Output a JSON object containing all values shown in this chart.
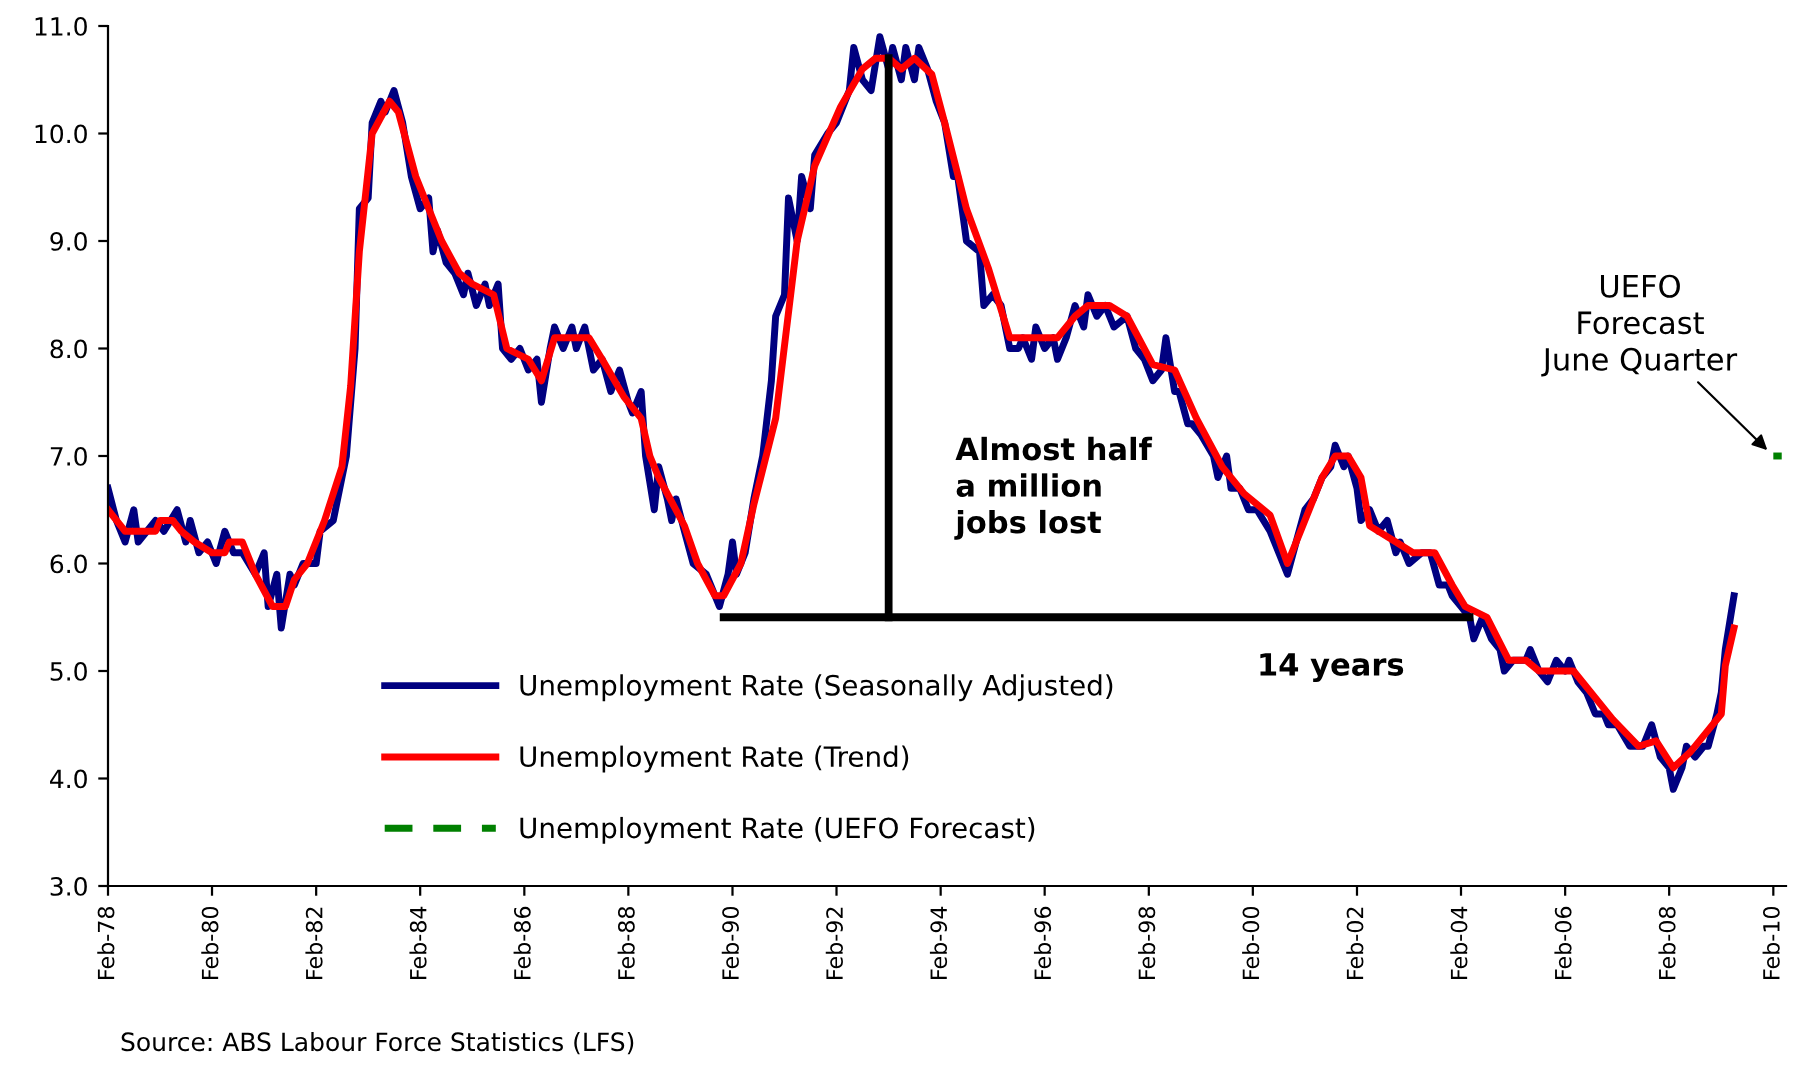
{
  "chart_data": {
    "type": "line",
    "xlim": [
      "1978-02",
      "2010-05"
    ],
    "xticks": [
      {
        "value": "1978-02",
        "label": "Feb-78"
      },
      {
        "value": "1980-02",
        "label": "Feb-80"
      },
      {
        "value": "1982-02",
        "label": "Feb-82"
      },
      {
        "value": "1984-02",
        "label": "Feb-84"
      },
      {
        "value": "1986-02",
        "label": "Feb-86"
      },
      {
        "value": "1988-02",
        "label": "Feb-88"
      },
      {
        "value": "1990-02",
        "label": "Feb-90"
      },
      {
        "value": "1992-02",
        "label": "Feb-92"
      },
      {
        "value": "1994-02",
        "label": "Feb-94"
      },
      {
        "value": "1996-02",
        "label": "Feb-96"
      },
      {
        "value": "1998-02",
        "label": "Feb-98"
      },
      {
        "value": "2000-02",
        "label": "Feb-00"
      },
      {
        "value": "2002-02",
        "label": "Feb-02"
      },
      {
        "value": "2004-02",
        "label": "Feb-04"
      },
      {
        "value": "2006-02",
        "label": "Feb-06"
      },
      {
        "value": "2008-02",
        "label": "Feb-08"
      },
      {
        "value": "2010-02",
        "label": "Feb-10"
      }
    ],
    "ylim": [
      3.0,
      11.0
    ],
    "yticks": [
      {
        "value": 3,
        "label": "3.0"
      },
      {
        "value": 4,
        "label": "4.0"
      },
      {
        "value": 5,
        "label": "5.0"
      },
      {
        "value": 6,
        "label": "6.0"
      },
      {
        "value": 7,
        "label": "7.0"
      },
      {
        "value": 8,
        "label": "8.0"
      },
      {
        "value": 9,
        "label": "9.0"
      },
      {
        "value": 10,
        "label": "10.0"
      },
      {
        "value": 11,
        "label": "11.0"
      }
    ],
    "grid": false,
    "legend": "bottom",
    "marker": "none",
    "series": [
      {
        "name": "Unemployment Rate (Seasonally Adjusted)",
        "color": "#000080",
        "line_style": "solid",
        "x": [
          "1978-02",
          "1978-04",
          "1978-06",
          "1978-08",
          "1978-09",
          "1978-11",
          "1979-01",
          "1979-03",
          "1979-06",
          "1979-08",
          "1979-09",
          "1979-11",
          "1980-01",
          "1980-03",
          "1980-05",
          "1980-07",
          "1980-09",
          "1980-12",
          "1981-02",
          "1981-03",
          "1981-05",
          "1981-06",
          "1981-08",
          "1981-09",
          "1981-11",
          "1982-02",
          "1982-03",
          "1982-06",
          "1982-08",
          "1982-09",
          "1982-11",
          "1982-12",
          "1983-02",
          "1983-03",
          "1983-05",
          "1983-06",
          "1983-08",
          "1983-10",
          "1983-12",
          "1984-02",
          "1984-04",
          "1984-05",
          "1984-06",
          "1984-08",
          "1984-10",
          "1984-12",
          "1985-01",
          "1985-03",
          "1985-05",
          "1985-06",
          "1985-08",
          "1985-09",
          "1985-11",
          "1986-01",
          "1986-03",
          "1986-05",
          "1986-06",
          "1986-08",
          "1986-09",
          "1986-11",
          "1987-01",
          "1987-02",
          "1987-04",
          "1987-06",
          "1987-08",
          "1987-10",
          "1987-12",
          "1988-02",
          "1988-03",
          "1988-05",
          "1988-06",
          "1988-08",
          "1988-09",
          "1988-11",
          "1988-12",
          "1989-01",
          "1989-03",
          "1989-05",
          "1989-08",
          "1989-09",
          "1989-11",
          "1990-01",
          "1990-02",
          "1990-03",
          "1990-05",
          "1990-07",
          "1990-09",
          "1990-11",
          "1990-12",
          "1991-02",
          "1991-03",
          "1991-05",
          "1991-06",
          "1991-08",
          "1991-09",
          "1991-12",
          "1992-02",
          "1992-05",
          "1992-06",
          "1992-08",
          "1992-10",
          "1992-12",
          "1993-02",
          "1993-03",
          "1993-05",
          "1993-06",
          "1993-08",
          "1993-09",
          "1993-11",
          "1994-01",
          "1994-03",
          "1994-05",
          "1994-06",
          "1994-08",
          "1994-11",
          "1994-12",
          "1995-02",
          "1995-04",
          "1995-06",
          "1995-08",
          "1995-09",
          "1995-11",
          "1995-12",
          "1996-02",
          "1996-04",
          "1996-05",
          "1996-07",
          "1996-09",
          "1996-11",
          "1996-12",
          "1997-02",
          "1997-04",
          "1997-06",
          "1997-09",
          "1997-11",
          "1998-01",
          "1998-03",
          "1998-05",
          "1998-06",
          "1998-08",
          "1998-09",
          "1998-11",
          "1998-12",
          "1999-02",
          "1999-05",
          "1999-06",
          "1999-08",
          "1999-09",
          "1999-11",
          "2000-01",
          "2000-03",
          "2000-06",
          "2000-08",
          "2000-10",
          "2000-12",
          "2001-02",
          "2001-04",
          "2001-06",
          "2001-08",
          "2001-09",
          "2001-11",
          "2001-12",
          "2002-02",
          "2002-03",
          "2002-05",
          "2002-07",
          "2002-09",
          "2002-11",
          "2002-12",
          "2003-02",
          "2003-05",
          "2003-07",
          "2003-09",
          "2003-11",
          "2003-12",
          "2004-02",
          "2004-04",
          "2004-05",
          "2004-07",
          "2004-09",
          "2004-11",
          "2004-12",
          "2005-02",
          "2005-05",
          "2005-06",
          "2005-08",
          "2005-10",
          "2005-12",
          "2006-02",
          "2006-03",
          "2006-05",
          "2006-07",
          "2006-09",
          "2006-11",
          "2006-12",
          "2007-02",
          "2007-05",
          "2007-06",
          "2007-08",
          "2007-10",
          "2007-12",
          "2008-02",
          "2008-03",
          "2008-05",
          "2008-06",
          "2008-08",
          "2008-10",
          "2008-11",
          "2009-01",
          "2009-02",
          "2009-03",
          "2009-05"
        ],
        "values": [
          6.7,
          6.4,
          6.2,
          6.5,
          6.2,
          6.3,
          6.4,
          6.3,
          6.5,
          6.2,
          6.4,
          6.1,
          6.2,
          6.0,
          6.3,
          6.1,
          6.1,
          5.9,
          6.1,
          5.6,
          5.9,
          5.4,
          5.9,
          5.8,
          6.0,
          6.0,
          6.3,
          6.4,
          6.8,
          7.0,
          8.0,
          9.3,
          9.4,
          10.1,
          10.3,
          10.2,
          10.4,
          10.1,
          9.6,
          9.3,
          9.4,
          8.9,
          9.1,
          8.8,
          8.7,
          8.5,
          8.7,
          8.4,
          8.6,
          8.4,
          8.6,
          8.0,
          7.9,
          8.0,
          7.8,
          7.9,
          7.5,
          8.0,
          8.2,
          8.0,
          8.2,
          8.0,
          8.2,
          7.8,
          7.9,
          7.6,
          7.8,
          7.5,
          7.4,
          7.6,
          7.0,
          6.5,
          6.9,
          6.6,
          6.4,
          6.6,
          6.3,
          6.0,
          5.9,
          5.8,
          5.6,
          5.9,
          6.2,
          5.9,
          6.1,
          6.6,
          7.0,
          7.7,
          8.3,
          8.5,
          9.4,
          9.0,
          9.6,
          9.3,
          9.8,
          10.0,
          10.1,
          10.4,
          10.8,
          10.5,
          10.4,
          10.9,
          10.6,
          10.8,
          10.5,
          10.8,
          10.5,
          10.8,
          10.6,
          10.3,
          10.1,
          9.6,
          9.6,
          9.0,
          8.9,
          8.4,
          8.5,
          8.4,
          8.0,
          8.0,
          8.1,
          7.9,
          8.2,
          8.0,
          8.1,
          7.9,
          8.1,
          8.4,
          8.2,
          8.5,
          8.3,
          8.4,
          8.2,
          8.3,
          8.0,
          7.9,
          7.7,
          7.8,
          8.1,
          7.6,
          7.6,
          7.3,
          7.3,
          7.2,
          7.0,
          6.8,
          7.0,
          6.7,
          6.7,
          6.5,
          6.5,
          6.3,
          6.1,
          5.9,
          6.2,
          6.5,
          6.6,
          6.8,
          6.9,
          7.1,
          6.9,
          7.0,
          6.7,
          6.4,
          6.5,
          6.3,
          6.4,
          6.1,
          6.2,
          6.0,
          6.1,
          6.1,
          5.8,
          5.8,
          5.7,
          5.6,
          5.5,
          5.3,
          5.5,
          5.3,
          5.2,
          5.0,
          5.1,
          5.1,
          5.2,
          5.0,
          4.9,
          5.1,
          5.0,
          5.1,
          4.9,
          4.8,
          4.6,
          4.6,
          4.5,
          4.5,
          4.3,
          4.3,
          4.3,
          4.5,
          4.2,
          4.1,
          3.9,
          4.1,
          4.3,
          4.2,
          4.3,
          4.3,
          4.6,
          4.8,
          5.2,
          5.7
        ]
      },
      {
        "name": "Unemployment Rate (Trend)",
        "color": "#ff0000",
        "line_style": "solid",
        "x": [
          "1978-02",
          "1978-06",
          "1979-01",
          "1979-02",
          "1979-05",
          "1979-07",
          "1979-10",
          "1980-02",
          "1980-05",
          "1980-06",
          "1980-09",
          "1980-12",
          "1981-04",
          "1981-07",
          "1981-09",
          "1981-12",
          "1982-04",
          "1982-08",
          "1982-10",
          "1982-12",
          "1983-03",
          "1983-07",
          "1983-09",
          "1984-01",
          "1984-07",
          "1984-11",
          "1985-02",
          "1985-07",
          "1985-10",
          "1986-03",
          "1986-06",
          "1986-09",
          "1987-05",
          "1987-08",
          "1988-01",
          "1988-05",
          "1988-07",
          "1988-09",
          "1989-03",
          "1989-06",
          "1989-10",
          "1989-12",
          "1990-04",
          "1990-07",
          "1990-12",
          "1991-05",
          "1991-09",
          "1992-03",
          "1992-08",
          "1992-11",
          "1993-02",
          "1993-05",
          "1993-08",
          "1993-12",
          "1994-03",
          "1994-08",
          "1995-01",
          "1995-06",
          "1996-05",
          "1996-09",
          "1996-12",
          "1997-05",
          "1997-09",
          "1998-03",
          "1998-08",
          "1999-01",
          "1999-07",
          "1999-12",
          "2000-06",
          "2000-10",
          "2001-01",
          "2001-06",
          "2001-09",
          "2001-12",
          "2002-03",
          "2002-05",
          "2002-11",
          "2003-03",
          "2003-08",
          "2003-12",
          "2004-03",
          "2004-08",
          "2005-01",
          "2005-05",
          "2005-08",
          "2006-04",
          "2006-09",
          "2007-01",
          "2007-07",
          "2007-11",
          "2008-03",
          "2008-07",
          "2008-11",
          "2009-02",
          "2009-03",
          "2009-05"
        ],
        "values": [
          6.5,
          6.3,
          6.3,
          6.4,
          6.4,
          6.3,
          6.2,
          6.1,
          6.1,
          6.2,
          6.2,
          5.9,
          5.6,
          5.6,
          5.85,
          6.0,
          6.4,
          6.9,
          7.65,
          8.9,
          10.0,
          10.3,
          10.2,
          9.6,
          9.0,
          8.7,
          8.6,
          8.5,
          8.0,
          7.9,
          7.7,
          8.1,
          8.1,
          7.9,
          7.55,
          7.35,
          7.0,
          6.8,
          6.35,
          6.0,
          5.7,
          5.7,
          6.0,
          6.55,
          7.35,
          9.0,
          9.7,
          10.25,
          10.6,
          10.7,
          10.7,
          10.6,
          10.7,
          10.55,
          10.1,
          9.3,
          8.75,
          8.1,
          8.1,
          8.3,
          8.4,
          8.4,
          8.3,
          7.85,
          7.8,
          7.35,
          6.9,
          6.65,
          6.45,
          6.0,
          6.3,
          6.8,
          7.0,
          7.0,
          6.8,
          6.35,
          6.2,
          6.1,
          6.1,
          5.8,
          5.6,
          5.5,
          5.1,
          5.1,
          5.0,
          5.0,
          4.75,
          4.55,
          4.3,
          4.35,
          4.1,
          4.25,
          4.45,
          4.6,
          5.05,
          5.4
        ]
      },
      {
        "name": "Unemployment Rate (UEFO Forecast)",
        "color": "#008000",
        "line_style": "dashed",
        "x": [
          "2010-02",
          "2010-04"
        ],
        "values": [
          7.0,
          7.0
        ]
      },
      {
        "color": "#000000",
        "line_style": "solid",
        "x": [
          "1989-12",
          "2004-04"
        ],
        "values": [
          5.5,
          5.5
        ]
      },
      {
        "color": "#000000",
        "line_style": "solid",
        "x": [
          "1993-02",
          "1993-02"
        ],
        "values": [
          5.5,
          10.7
        ]
      }
    ],
    "annotations": [
      {
        "text": "Almost half\na million\njobs lost",
        "x": "1993-02",
        "y": 6.7
      },
      {
        "text": "14 years",
        "x": "2001-08",
        "y": 5.5
      },
      {
        "text": "UEFO\nForecast\nJune Quarter",
        "x": "2010-02",
        "y": 7.0
      },
      "Source: ABS Labour Force Statistics (LFS)"
    ]
  }
}
